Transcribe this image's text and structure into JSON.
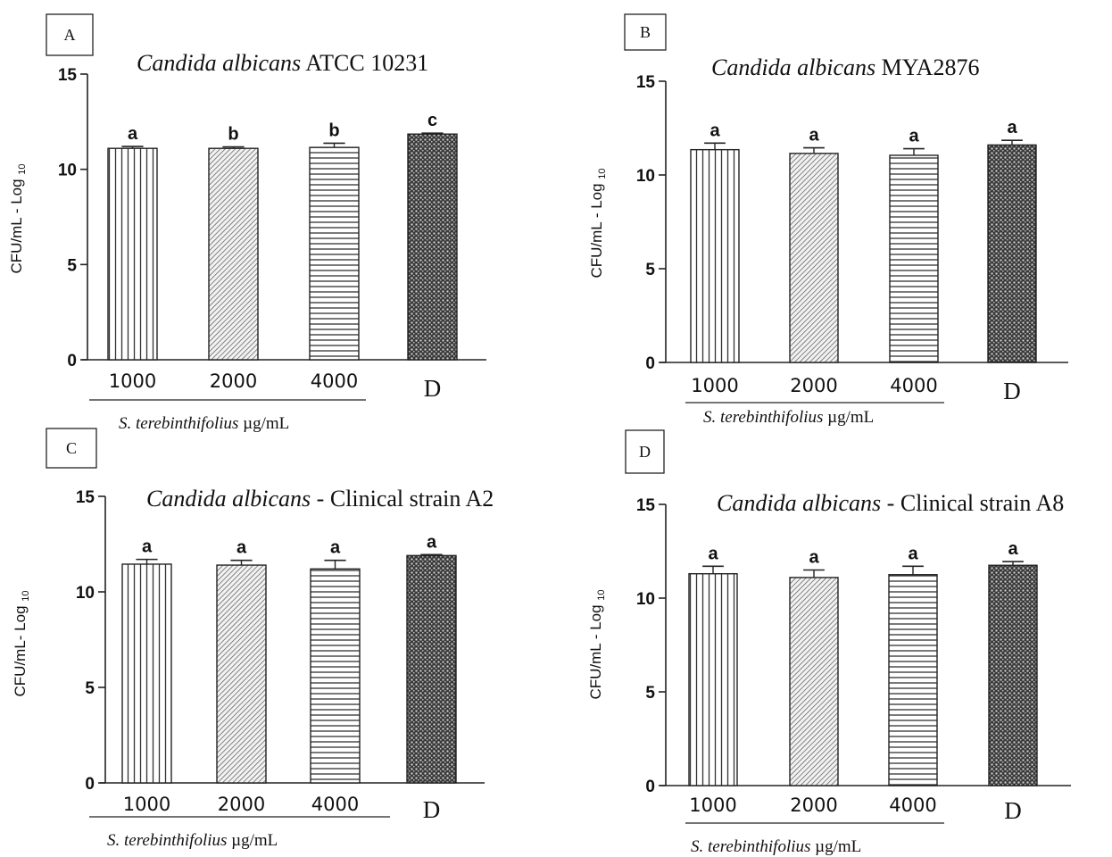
{
  "chart_data": [
    {
      "type": "bar",
      "panel_label": "A",
      "title": {
        "italic": "Candida albicans",
        "rest": " ATCC 10231"
      },
      "ylabel": "CFU/mL - Log",
      "ylabel_sub": "10",
      "xlabel": {
        "italic": "S. terebinthifolius",
        "rest": " µg/mL"
      },
      "categories": [
        "1000",
        "2000",
        "4000",
        "D"
      ],
      "values": [
        11.1,
        11.1,
        11.15,
        11.85
      ],
      "errors": [
        0.1,
        0.08,
        0.22,
        0.05
      ],
      "significance": [
        "a",
        "b",
        "b",
        "c"
      ],
      "patterns": [
        "vertical",
        "diagonal",
        "horizontal",
        "dense"
      ],
      "ylim": [
        0,
        15
      ],
      "yticks": [
        0,
        5,
        10,
        15
      ],
      "grid": false,
      "legend": "none"
    },
    {
      "type": "bar",
      "panel_label": "B",
      "title": {
        "italic": "Candida albicans",
        "rest": " MYA2876"
      },
      "ylabel": "CFU/mL - Log",
      "ylabel_sub": "10",
      "xlabel": {
        "italic": "S. terebinthifolius",
        "rest": " µg/mL"
      },
      "categories": [
        "1000",
        "2000",
        "4000",
        "D"
      ],
      "values": [
        11.35,
        11.15,
        11.05,
        11.6
      ],
      "errors": [
        0.35,
        0.3,
        0.35,
        0.25
      ],
      "significance": [
        "a",
        "a",
        "a",
        "a"
      ],
      "patterns": [
        "vertical",
        "diagonal",
        "horizontal",
        "dense"
      ],
      "ylim": [
        0,
        15
      ],
      "yticks": [
        0,
        5,
        10,
        15
      ],
      "grid": false,
      "legend": "none"
    },
    {
      "type": "bar",
      "panel_label": "C",
      "title": {
        "italic": "Candida albicans",
        "rest": " - Clinical strain A2"
      },
      "ylabel": "CFU/mL- Log",
      "ylabel_sub": "10",
      "xlabel": {
        "italic": "S. terebinthifolius",
        "rest": " µg/mL"
      },
      "categories": [
        "1000",
        "2000",
        "4000",
        "D"
      ],
      "values": [
        11.45,
        11.4,
        11.2,
        11.9
      ],
      "errors": [
        0.25,
        0.25,
        0.45,
        0.05
      ],
      "significance": [
        "a",
        "a",
        "a",
        "a"
      ],
      "patterns": [
        "vertical",
        "diagonal",
        "horizontal",
        "dense"
      ],
      "ylim": [
        0,
        15
      ],
      "yticks": [
        0,
        5,
        10,
        15
      ],
      "grid": false,
      "legend": "none"
    },
    {
      "type": "bar",
      "panel_label": "D",
      "title": {
        "italic": "Candida albicans",
        "rest": " - Clinical strain A8"
      },
      "ylabel": "CFU/mL - Log",
      "ylabel_sub": "10",
      "xlabel": {
        "italic": "S. terebinthifolius",
        "rest": " µg/mL"
      },
      "categories": [
        "1000",
        "2000",
        "4000",
        "D"
      ],
      "values": [
        11.3,
        11.1,
        11.25,
        11.75
      ],
      "errors": [
        0.4,
        0.4,
        0.45,
        0.2
      ],
      "significance": [
        "a",
        "a",
        "a",
        "a"
      ],
      "patterns": [
        "vertical",
        "diagonal",
        "horizontal",
        "dense"
      ],
      "ylim": [
        0,
        15
      ],
      "yticks": [
        0,
        5,
        10,
        15
      ],
      "grid": false,
      "legend": "none"
    }
  ]
}
